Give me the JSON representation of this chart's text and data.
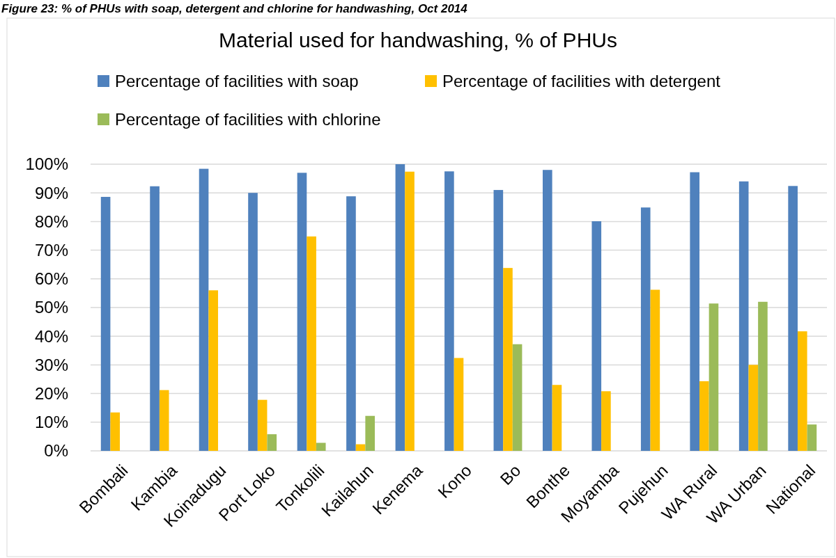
{
  "chart_data": {
    "type": "bar",
    "title": "Material used for handwashing, % of PHUs",
    "annotations": [
      "Figure 23: % of PHUs with soap, detergent and chlorine for handwashing, Oct 2014"
    ],
    "categories": [
      "Bombali",
      "Kambia",
      "Koinadugu",
      "Port Loko",
      "Tonkolili",
      "Kailahun",
      "Kenema",
      "Kono",
      "Bo",
      "Bonthe",
      "Moyamba",
      "Pujehun",
      "WA Rural",
      "WA Urban",
      "National"
    ],
    "series": [
      {
        "name": "Percentage of facilities with soap",
        "color": "#4f81bd",
        "values": [
          88.6,
          92.3,
          98.4,
          90,
          97,
          88.8,
          100,
          97.5,
          91,
          98,
          80.1,
          84.9,
          97.2,
          94,
          92.4
        ]
      },
      {
        "name": "Percentage of facilities with detergent",
        "color": "#ffc000",
        "values": [
          13.4,
          21.2,
          56,
          17.8,
          74.8,
          2.3,
          97.4,
          32.4,
          63.8,
          23,
          20.8,
          56.2,
          24.3,
          30,
          41.7
        ]
      },
      {
        "name": "Percentage of facilities with chlorine",
        "color": "#9bbb59",
        "values": [
          0,
          0,
          0,
          5.8,
          2.8,
          12.2,
          0,
          0,
          37.2,
          0,
          0,
          0,
          51.4,
          52,
          9.2
        ]
      }
    ],
    "ylim": [
      0,
      100
    ],
    "yticks": [
      {
        "value": 0,
        "label": "0%"
      },
      {
        "value": 10,
        "label": "10%"
      },
      {
        "value": 20,
        "label": "20%"
      },
      {
        "value": 30,
        "label": "30%"
      },
      {
        "value": 40,
        "label": "40%"
      },
      {
        "value": 50,
        "label": "50%"
      },
      {
        "value": 60,
        "label": "60%"
      },
      {
        "value": 70,
        "label": "70%"
      },
      {
        "value": 80,
        "label": "80%"
      },
      {
        "value": 90,
        "label": "90%"
      },
      {
        "value": 100,
        "label": "100%"
      }
    ],
    "grid": "y",
    "legend": "top"
  }
}
